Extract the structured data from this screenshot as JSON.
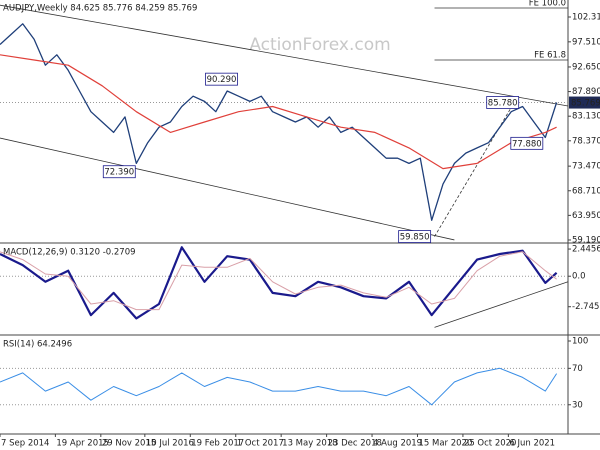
{
  "chart_data": [
    {
      "type": "line",
      "title": "AUDJPY,Weekly  84.625 85.776 84.259 85.769",
      "watermark": "ActionForex.com",
      "xlim": [
        0,
        400
      ],
      "ylim": [
        58.8,
        105.6
      ],
      "yticks": [
        {
          "value": 102.31,
          "label": "102.310"
        },
        {
          "value": 97.51,
          "label": "97.510"
        },
        {
          "value": 92.65,
          "label": "92.650"
        },
        {
          "value": 87.89,
          "label": "87.890"
        },
        {
          "value": 83.13,
          "label": "83.130"
        },
        {
          "value": 78.37,
          "label": "78.370"
        },
        {
          "value": 73.47,
          "label": "73.470"
        },
        {
          "value": 68.71,
          "label": "68.710"
        },
        {
          "value": 63.95,
          "label": "63.950"
        },
        {
          "value": 59.19,
          "label": "59.190"
        }
      ],
      "last_price": {
        "value": 85.769,
        "label": "85.769"
      },
      "last_price_line": true,
      "series": [
        {
          "color": "#1f3f7a",
          "width": 1.3,
          "x": [
            0,
            8,
            16,
            24,
            32,
            40,
            48,
            56,
            64,
            72,
            80,
            88,
            96,
            104,
            112,
            120,
            128,
            136,
            144,
            152,
            160,
            168,
            176,
            184,
            192,
            200,
            208,
            216,
            224,
            232,
            240,
            248,
            256,
            264,
            272,
            280,
            288,
            296,
            304,
            312,
            320,
            328,
            336,
            344,
            352,
            360,
            368,
            376,
            384,
            392
          ],
          "values": [
            97,
            99,
            101,
            98,
            93,
            95,
            92,
            88,
            84,
            82,
            80,
            83,
            74,
            78,
            81,
            82,
            85,
            87,
            86,
            84,
            88,
            87,
            86,
            87,
            84,
            83,
            82,
            83,
            81,
            83,
            80,
            81,
            79,
            77,
            75,
            75,
            74,
            75,
            63,
            70,
            74,
            76,
            77,
            78,
            81,
            84,
            85,
            82,
            79,
            85.769
          ]
        },
        {
          "color": "#e0403a",
          "width": 1.2,
          "x": [
            0,
            24,
            48,
            72,
            96,
            120,
            144,
            168,
            192,
            216,
            240,
            264,
            288,
            312,
            336,
            360,
            384,
            392
          ],
          "values": [
            95,
            94,
            93,
            89,
            84,
            80,
            82,
            84,
            85,
            83,
            81,
            80,
            77,
            73,
            74,
            78,
            80,
            81
          ]
        }
      ],
      "trendlines": [
        {
          "x": [
            0,
            400
          ],
          "y": [
            104.6,
            85.1
          ],
          "dashed": false
        },
        {
          "x": [
            0,
            320
          ],
          "y": [
            78.9,
            59.2
          ],
          "dashed": false
        },
        {
          "x": [
            306,
            363
          ],
          "y": [
            59.85,
            86.2
          ],
          "dashed": true
        }
      ],
      "levels": [
        {
          "value": 104.05,
          "label": "FE 100.0",
          "x": [
            306,
            400
          ]
        },
        {
          "value": 94.0,
          "label": "FE 61.8",
          "x": [
            306,
            400
          ]
        }
      ],
      "annotations": [
        {
          "x": 156,
          "value": 90.29,
          "label": "90.290"
        },
        {
          "x": 84,
          "value": 72.39,
          "label": "72.390"
        },
        {
          "x": 292,
          "value": 59.85,
          "label": "59.850"
        },
        {
          "x": 354,
          "value": 85.78,
          "label": "85.780"
        },
        {
          "x": 371,
          "value": 77.88,
          "label": "77.880"
        }
      ]
    },
    {
      "type": "line",
      "title": "MACD(12,26,9) 0.3120 -0.2709",
      "xlim": [
        0,
        400
      ],
      "ylim": [
        -5.2,
        2.9
      ],
      "yticks": [
        2.4456,
        {
          "value": 0,
          "label": "0.0"
        },
        -2.7452
      ],
      "grid_at": [
        0
      ],
      "series": [
        {
          "color": "#1a1a8c",
          "width": 2.2,
          "x": [
            0,
            16,
            32,
            48,
            64,
            80,
            96,
            112,
            128,
            144,
            160,
            176,
            192,
            208,
            224,
            240,
            256,
            272,
            288,
            304,
            320,
            336,
            352,
            368,
            384,
            392
          ],
          "values": [
            2.0,
            1.0,
            -0.5,
            0.5,
            -3.5,
            -1.5,
            -3.8,
            -2.5,
            2.6,
            -0.5,
            1.8,
            1.5,
            -1.5,
            -1.8,
            -0.5,
            -1.0,
            -1.8,
            -2.0,
            -0.5,
            -3.5,
            -1.0,
            1.5,
            2.0,
            2.3,
            -0.6,
            0.312
          ]
        },
        {
          "color": "#d9a0a8",
          "width": 1,
          "x": [
            0,
            16,
            32,
            48,
            64,
            80,
            96,
            112,
            128,
            144,
            160,
            176,
            192,
            208,
            224,
            240,
            256,
            272,
            288,
            304,
            320,
            336,
            352,
            368,
            384,
            392
          ],
          "values": [
            2.2,
            1.5,
            0.2,
            0.0,
            -2.5,
            -2.2,
            -3.0,
            -3.0,
            1.0,
            0.8,
            0.8,
            1.6,
            -0.5,
            -1.6,
            -1.0,
            -0.8,
            -1.5,
            -1.9,
            -1.0,
            -2.5,
            -2.0,
            0.5,
            1.8,
            2.2,
            0.5,
            -0.2709
          ]
        }
      ],
      "trendlines": [
        {
          "x": [
            306,
            400
          ],
          "y": [
            -4.6,
            -0.5
          ],
          "dashed": false
        }
      ]
    },
    {
      "type": "line",
      "title": "RSI(14) 64.2496",
      "xlim": [
        0,
        400
      ],
      "ylim": [
        -1,
        105.5
      ],
      "yticks": [
        100,
        70,
        30
      ],
      "grid_at": [
        70,
        30
      ],
      "xticks": [
        {
          "value": 0,
          "label": "7 Sep 2014"
        },
        {
          "value": 39,
          "label": "19 Apr 2015"
        },
        {
          "value": 71,
          "label": "29 Nov 2015"
        },
        {
          "value": 102,
          "label": "10 Jul 2016"
        },
        {
          "value": 134,
          "label": "19 Feb 2017"
        },
        {
          "value": 166,
          "label": "1 Oct 2017"
        },
        {
          "value": 198,
          "label": "13 May 2018"
        },
        {
          "value": 230,
          "label": "23 Dec 2018"
        },
        {
          "value": 262,
          "label": "4 Aug 2019"
        },
        {
          "value": 294,
          "label": "15 Mar 2020"
        },
        {
          "value": 326,
          "label": "25 Oct 2020"
        },
        {
          "value": 358,
          "label": "6 Jun 2021"
        }
      ],
      "series": [
        {
          "color": "#3a8ee6",
          "width": 1,
          "x": [
            0,
            16,
            32,
            48,
            64,
            80,
            96,
            112,
            128,
            144,
            160,
            176,
            192,
            208,
            224,
            240,
            256,
            272,
            288,
            304,
            320,
            336,
            352,
            368,
            384,
            392
          ],
          "values": [
            55,
            65,
            45,
            55,
            35,
            50,
            40,
            50,
            65,
            50,
            60,
            55,
            45,
            45,
            50,
            45,
            45,
            40,
            50,
            30,
            55,
            65,
            70,
            60,
            45,
            64.2496
          ]
        }
      ]
    }
  ]
}
